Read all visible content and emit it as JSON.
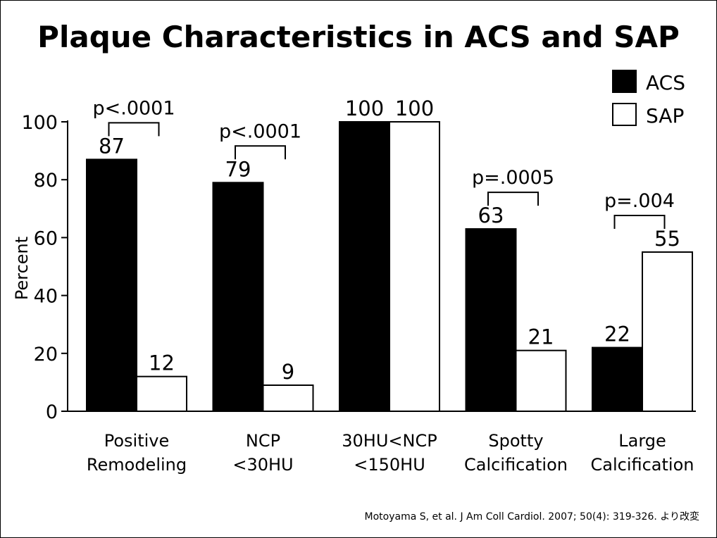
{
  "chart_data": {
    "type": "bar",
    "title": "Plaque Characteristics in ACS and SAP",
    "ylabel": "Percent",
    "xlabel": "",
    "ylim": [
      0,
      100
    ],
    "yticks": [
      "0",
      "20",
      "40",
      "60",
      "80",
      "100"
    ],
    "categories": [
      [
        "Positive",
        "Remodeling"
      ],
      [
        "NCP",
        "<30HU"
      ],
      [
        "30HU<NCP",
        "<150HU"
      ],
      [
        "Spotty",
        "Calcification"
      ],
      [
        "Large",
        "Calcification"
      ]
    ],
    "series": [
      {
        "name": "ACS",
        "color": "#000000",
        "values": [
          87,
          79,
          100,
          63,
          22
        ]
      },
      {
        "name": "SAP",
        "color": "#ffffff",
        "values": [
          12,
          9,
          100,
          21,
          55
        ]
      }
    ],
    "data_labels": {
      "ACS": [
        "87",
        "79",
        "100",
        "63",
        "22"
      ],
      "SAP": [
        "12",
        "9",
        "100",
        "21",
        "55"
      ]
    },
    "pvalues": [
      "p<.0001",
      "p<.0001",
      null,
      "p=.0005",
      "p=.004"
    ],
    "legend_position": "top-right",
    "source": "Motoyama S, et al. J Am Coll Cardiol. 2007; 50(4): 319-326. より改変"
  }
}
